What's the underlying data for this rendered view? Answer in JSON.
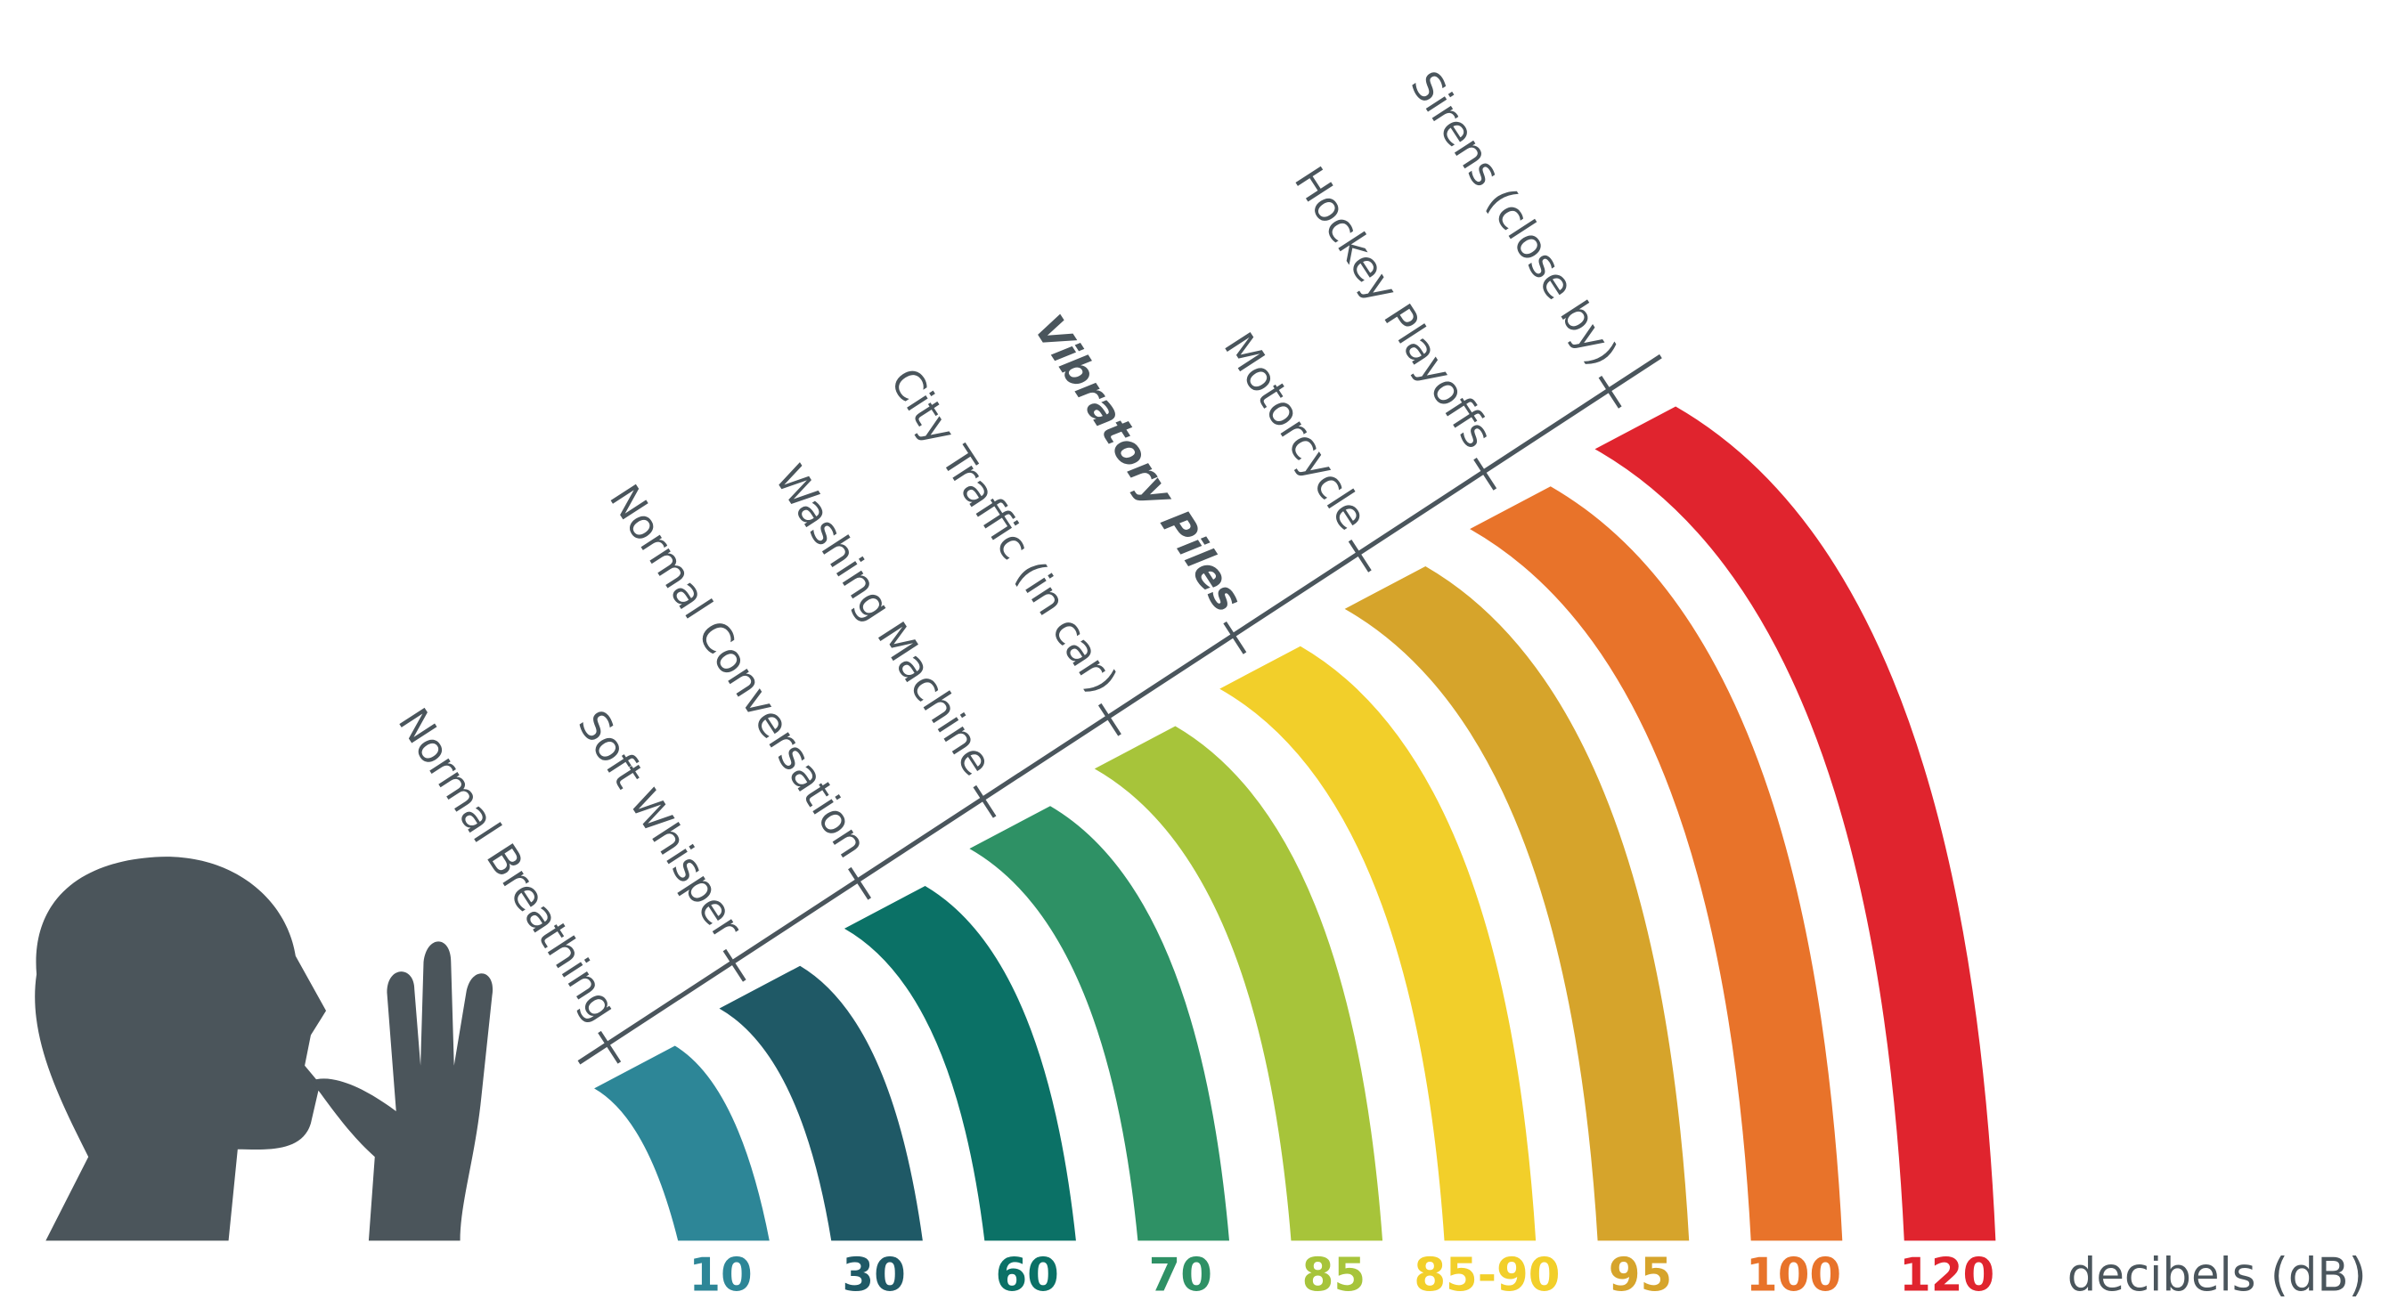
{
  "levels": [
    {
      "label": "Normal Breathing",
      "db": 10,
      "color": "#2d8697"
    },
    {
      "label": "Soft Whisper",
      "db": 30,
      "color": "#1f5966"
    },
    {
      "label": "Normal Conversation",
      "db": 60,
      "color": "#0b7166"
    },
    {
      "label": "Washing Machine",
      "db": 70,
      "color": "#2e9165"
    },
    {
      "label": "City Traffic (in car)",
      "db": 85,
      "color": "#a7c43a"
    },
    {
      "label": "Vibratory Piles",
      "db": "85-90",
      "color": "#f2cf2a",
      "emphasis": true
    },
    {
      "label": "Motorcycle",
      "db": 95,
      "color": "#d6a42b"
    },
    {
      "label": "Hockey Playoffs",
      "db": 100,
      "color": "#e8732a"
    },
    {
      "label": "Sirens (close by)",
      "db": 120,
      "color": "#e0242e"
    }
  ],
  "unit_label": "decibels (dB)"
}
